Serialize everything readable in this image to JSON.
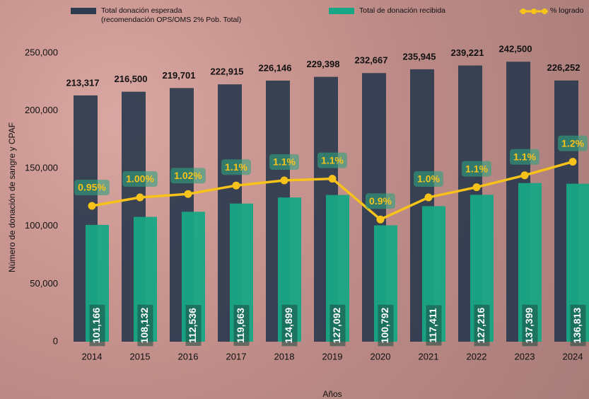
{
  "chart_data": {
    "type": "bar",
    "categories": [
      "2014",
      "2015",
      "2016",
      "2017",
      "2018",
      "2019",
      "2020",
      "2021",
      "2022",
      "2023",
      "2024"
    ],
    "x_label": "Años",
    "y_label": "Número de donación de sangre y CPAF",
    "ylim": [
      0,
      250000
    ],
    "yticks": [
      0,
      {
        "value": 50000,
        "label": "50,000"
      },
      {
        "value": 100000,
        "label": "100,000"
      },
      {
        "value": 150000,
        "label": "150,000"
      },
      {
        "value": 200000,
        "label": "200,000"
      },
      {
        "value": 250000,
        "label": "250,000"
      }
    ],
    "y2lim": [
      0.15,
      1.85
    ],
    "series": [
      {
        "name": "Total donación esperada\n(recomendación OPS/OMS 2% Pob. Total)",
        "color": "#2d3b4e",
        "values": [
          213317,
          216500,
          219701,
          222915,
          226146,
          229398,
          232667,
          235945,
          239221,
          242500,
          226252
        ],
        "value_labels": [
          "213,317",
          "216,500",
          "219,701",
          "222,915",
          "226,146",
          "229,398",
          "232,667",
          "235,945",
          "239,221",
          "242,500",
          "226,252"
        ]
      },
      {
        "name": "Total de donación recibida",
        "color": "#17a685",
        "values": [
          101166,
          108132,
          112536,
          119663,
          124899,
          127092,
          100792,
          117411,
          127216,
          137399,
          136813
        ],
        "value_labels": [
          "101,166",
          "108,132",
          "112,536",
          "119,663",
          "124,899",
          "127,092",
          "100,792",
          "117,411",
          "127,216",
          "137,399",
          "136,813"
        ]
      },
      {
        "name": "% logrado",
        "type": "line",
        "axis": "y2",
        "color": "#f7c21a",
        "values": [
          0.95,
          1.0,
          1.02,
          1.07,
          1.1,
          1.11,
          0.87,
          1.0,
          1.06,
          1.13,
          1.21
        ],
        "value_labels": [
          "0.95%",
          "1.00%",
          "1.02%",
          "1.1%",
          "1.1%",
          "1.1%",
          "0.9%",
          "1.0%",
          "1.1%",
          "1.1%",
          "1.2%"
        ]
      }
    ]
  }
}
